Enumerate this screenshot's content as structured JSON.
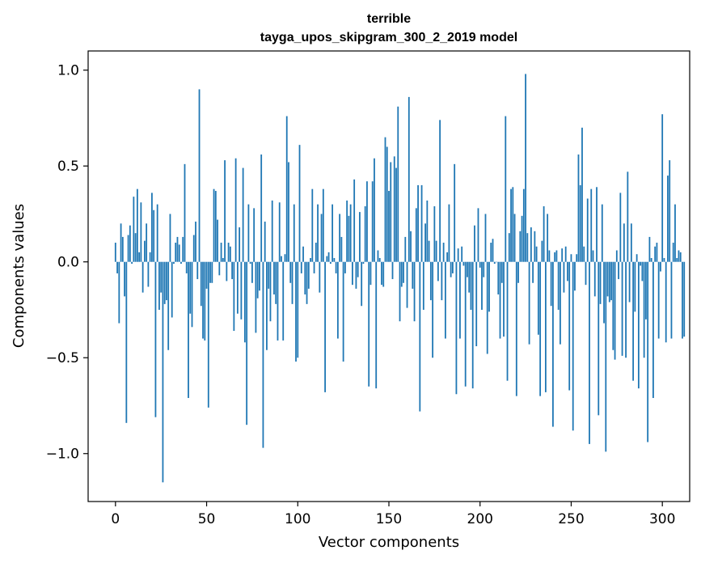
{
  "chart_data": {
    "type": "bar",
    "title": "terrible",
    "subtitle": "tayga_upos_skipgram_300_2_2019 model",
    "xlabel": "Vector components",
    "ylabel": "Components values",
    "xlim": [
      -15,
      315
    ],
    "ylim": [
      -1.25,
      1.1
    ],
    "x_ticks": [
      0,
      50,
      100,
      150,
      200,
      250,
      300
    ],
    "x_tick_labels": [
      "0",
      "50",
      "100",
      "150",
      "200",
      "250",
      "300"
    ],
    "y_ticks": [
      -1.0,
      -0.5,
      0.0,
      0.5,
      1.0
    ],
    "y_tick_labels": [
      "−1.0",
      "−0.5",
      "0.0",
      "0.5",
      "1.0"
    ],
    "bar_color": "#1f77b4",
    "grid": false,
    "legend": "none",
    "values": [
      0.1,
      -0.06,
      -0.32,
      0.2,
      0.13,
      -0.18,
      -0.84,
      0.14,
      0.19,
      -0.01,
      0.34,
      0.15,
      0.38,
      0.05,
      0.31,
      -0.16,
      0.11,
      0.2,
      -0.13,
      0.05,
      0.36,
      0.27,
      -0.81,
      0.3,
      -0.25,
      -0.16,
      -1.15,
      -0.22,
      -0.2,
      -0.46,
      0.25,
      -0.29,
      -0.01,
      0.1,
      0.13,
      0.09,
      -0.01,
      0.13,
      0.51,
      -0.06,
      -0.71,
      -0.27,
      -0.34,
      0.14,
      0.21,
      -0.09,
      0.9,
      -0.23,
      -0.4,
      -0.41,
      -0.14,
      -0.76,
      -0.11,
      -0.11,
      0.38,
      0.37,
      0.22,
      -0.07,
      0.1,
      0.02,
      0.53,
      -0.1,
      0.1,
      0.08,
      -0.09,
      -0.36,
      0.54,
      -0.27,
      0.18,
      -0.3,
      0.49,
      -0.42,
      -0.85,
      0.3,
      -0.01,
      -0.11,
      0.28,
      -0.37,
      -0.19,
      -0.15,
      0.56,
      -0.97,
      0.21,
      -0.46,
      -0.14,
      -0.31,
      0.32,
      -0.17,
      -0.22,
      -0.41,
      0.31,
      0.03,
      -0.41,
      0.04,
      0.76,
      0.52,
      -0.11,
      -0.22,
      0.3,
      -0.52,
      -0.5,
      0.61,
      -0.06,
      0.08,
      -0.17,
      -0.22,
      -0.14,
      0.02,
      0.38,
      -0.06,
      0.1,
      0.3,
      -0.16,
      0.25,
      0.38,
      -0.68,
      0.03,
      0.05,
      -0.01,
      0.3,
      0.02,
      -0.06,
      -0.4,
      0.25,
      0.13,
      -0.52,
      -0.06,
      0.32,
      0.24,
      0.3,
      -0.12,
      0.43,
      -0.14,
      -0.08,
      0.26,
      -0.23,
      -0.01,
      0.29,
      0.42,
      -0.65,
      -0.12,
      0.42,
      0.54,
      -0.66,
      0.06,
      0.02,
      -0.12,
      -0.13,
      0.65,
      0.6,
      0.37,
      0.52,
      -0.09,
      0.55,
      0.49,
      0.81,
      -0.31,
      -0.13,
      -0.11,
      0.13,
      -0.24,
      0.86,
      0.16,
      -0.14,
      -0.31,
      0.28,
      0.4,
      -0.78,
      0.4,
      -0.25,
      0.2,
      0.32,
      0.11,
      -0.2,
      -0.5,
      0.29,
      0.11,
      -0.1,
      0.74,
      -0.2,
      0.1,
      -0.4,
      0.05,
      0.3,
      -0.08,
      -0.06,
      0.51,
      -0.69,
      0.07,
      -0.4,
      0.08,
      -0.02,
      -0.65,
      -0.08,
      -0.16,
      -0.25,
      -0.66,
      0.19,
      -0.44,
      0.28,
      -0.03,
      -0.25,
      -0.08,
      0.25,
      -0.48,
      -0.26,
      0.1,
      0.12,
      -0.01,
      0.0,
      -0.17,
      -0.4,
      -0.11,
      -0.39,
      0.76,
      -0.62,
      0.15,
      0.38,
      0.39,
      0.25,
      -0.7,
      -0.11,
      0.16,
      0.24,
      0.38,
      0.98,
      0.15,
      -0.43,
      0.18,
      -0.11,
      0.16,
      0.08,
      -0.38,
      -0.7,
      0.11,
      0.29,
      -0.68,
      0.25,
      0.06,
      -0.23,
      -0.86,
      0.05,
      0.06,
      -0.25,
      -0.43,
      0.07,
      -0.16,
      0.08,
      -0.1,
      -0.67,
      0.04,
      -0.88,
      -0.15,
      0.04,
      0.56,
      0.4,
      0.7,
      0.08,
      -0.12,
      0.33,
      -0.95,
      0.38,
      0.06,
      -0.18,
      0.39,
      -0.8,
      -0.22,
      0.3,
      -0.32,
      -0.99,
      -0.18,
      -0.21,
      -0.2,
      -0.46,
      -0.51,
      0.06,
      -0.09,
      0.36,
      -0.49,
      0.2,
      -0.5,
      0.47,
      -0.21,
      0.2,
      -0.62,
      -0.26,
      0.04,
      -0.66,
      -0.02,
      -0.1,
      -0.5,
      -0.3,
      -0.94,
      0.13,
      0.02,
      -0.71,
      0.08,
      0.1,
      -0.4,
      -0.05,
      0.77,
      0.02,
      -0.42,
      0.45,
      0.53,
      -0.4,
      0.1,
      0.3,
      0.02,
      0.06,
      0.05,
      -0.4,
      -0.39
    ]
  }
}
